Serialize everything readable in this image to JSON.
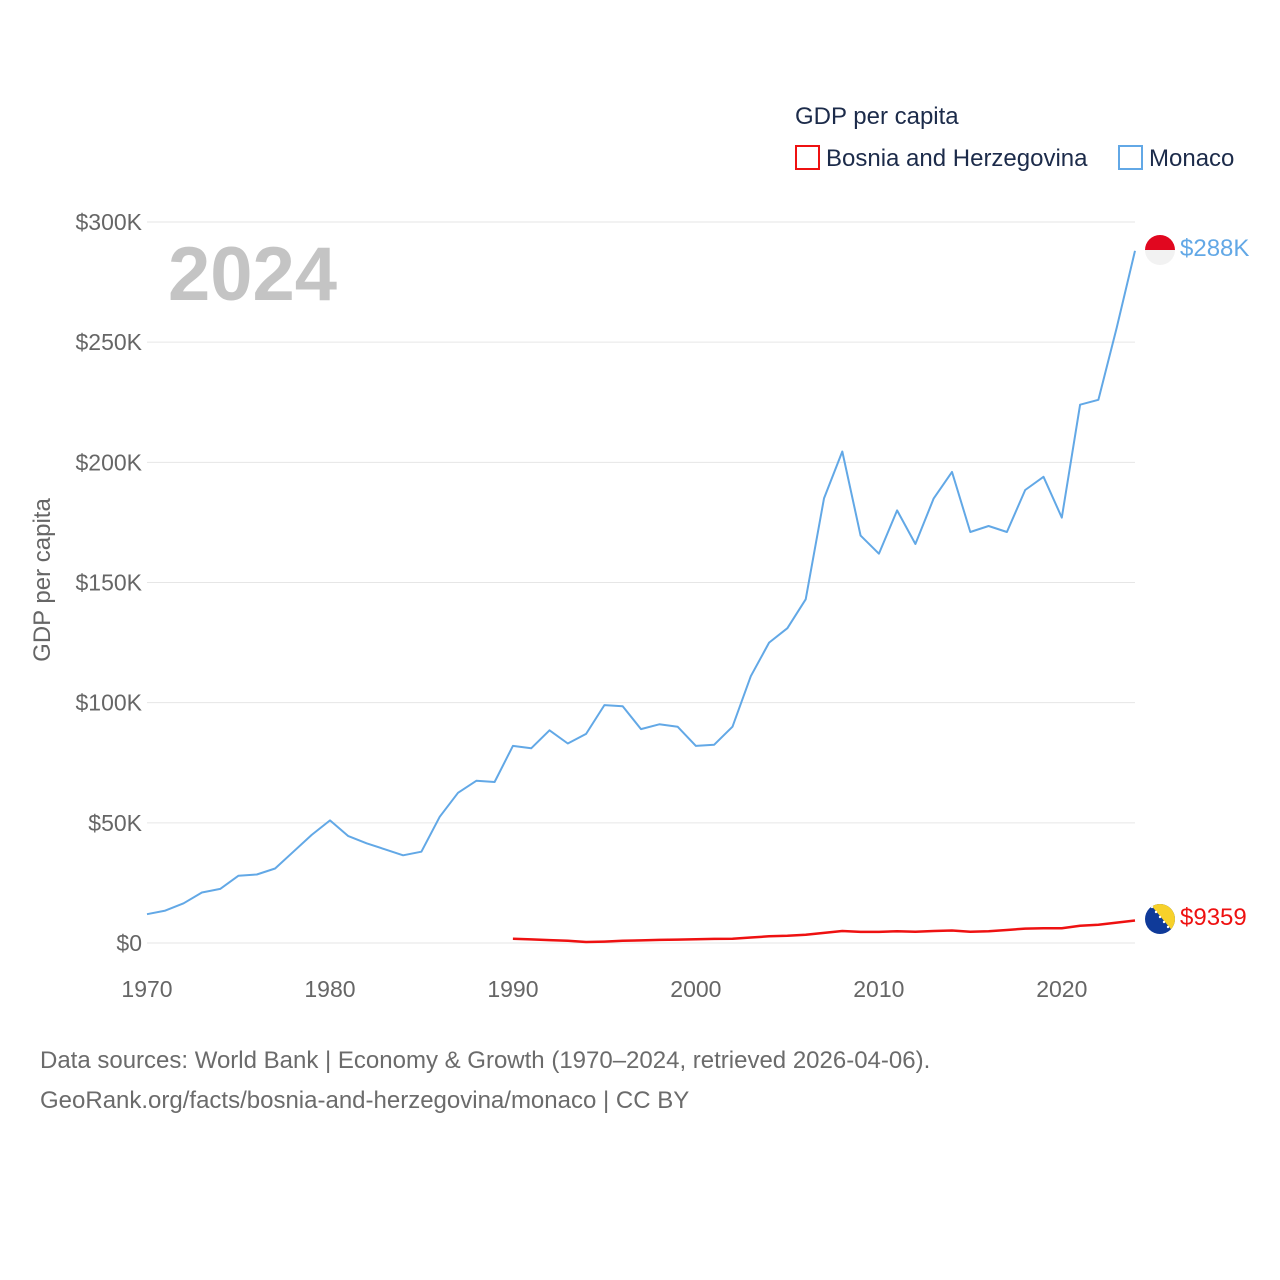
{
  "chart_data": {
    "type": "line",
    "year_label": "2024",
    "ylabel": "GDP per capita",
    "legend_title": "GDP per capita",
    "xlim": [
      1970,
      2024
    ],
    "ylim": [
      0,
      300000
    ],
    "x_ticks": [
      {
        "value": 1970,
        "label": "1970"
      },
      {
        "value": 1980,
        "label": "1980"
      },
      {
        "value": 1990,
        "label": "1990"
      },
      {
        "value": 2000,
        "label": "2000"
      },
      {
        "value": 2010,
        "label": "2010"
      },
      {
        "value": 2020,
        "label": "2020"
      }
    ],
    "y_ticks": [
      {
        "value": 0,
        "label": "$0"
      },
      {
        "value": 50000,
        "label": "$50K"
      },
      {
        "value": 100000,
        "label": "$100K"
      },
      {
        "value": 150000,
        "label": "$150K"
      },
      {
        "value": 200000,
        "label": "$200K"
      },
      {
        "value": 250000,
        "label": "$250K"
      },
      {
        "value": 300000,
        "label": "$300K"
      }
    ],
    "series": [
      {
        "name": "Bosnia and Herzegovina",
        "color": "#ee1111",
        "end_label": "$9359",
        "flag": "bosnia-flag-icon",
        "x": [
          1990,
          1991,
          1992,
          1993,
          1994,
          1995,
          1996,
          1997,
          1998,
          1999,
          2000,
          2001,
          2002,
          2003,
          2004,
          2005,
          2006,
          2007,
          2008,
          2009,
          2010,
          2011,
          2012,
          2013,
          2014,
          2015,
          2016,
          2017,
          2018,
          2019,
          2020,
          2021,
          2022,
          2023,
          2024
        ],
        "values": [
          1800,
          1500,
          1200,
          900,
          400,
          600,
          900,
          1100,
          1300,
          1400,
          1600,
          1700,
          1800,
          2300,
          2800,
          3000,
          3400,
          4200,
          5000,
          4600,
          4600,
          4900,
          4700,
          5000,
          5200,
          4700,
          4900,
          5400,
          6000,
          6100,
          6100,
          7200,
          7600,
          8500,
          9359
        ]
      },
      {
        "name": "Monaco",
        "color": "#62a8e6",
        "end_label": "$288K",
        "flag": "monaco-flag-icon",
        "x": [
          1970,
          1971,
          1972,
          1973,
          1974,
          1975,
          1976,
          1977,
          1978,
          1979,
          1980,
          1981,
          1982,
          1983,
          1984,
          1985,
          1986,
          1987,
          1988,
          1989,
          1990,
          1991,
          1992,
          1993,
          1994,
          1995,
          1996,
          1997,
          1998,
          1999,
          2000,
          2001,
          2002,
          2003,
          2004,
          2005,
          2006,
          2007,
          2008,
          2009,
          2010,
          2011,
          2012,
          2013,
          2014,
          2015,
          2016,
          2017,
          2018,
          2019,
          2020,
          2021,
          2022,
          2023,
          2024
        ],
        "values": [
          12000,
          13500,
          16500,
          21000,
          22500,
          28000,
          28500,
          31000,
          38000,
          45000,
          51000,
          44500,
          41500,
          39000,
          36500,
          38000,
          52500,
          62500,
          67500,
          67000,
          82000,
          81000,
          88500,
          83000,
          87000,
          99000,
          98500,
          89000,
          91000,
          90000,
          82000,
          82500,
          90000,
          111000,
          125000,
          131000,
          143000,
          185000,
          204500,
          169500,
          162000,
          180000,
          166000,
          185000,
          196000,
          171000,
          173500,
          171000,
          188500,
          194000,
          177000,
          224000,
          226000,
          256000,
          288000
        ]
      }
    ]
  },
  "footer": {
    "line1": "Data sources: World Bank | Economy & Growth (1970–2024, retrieved 2026-04-06).",
    "line2": "GeoRank.org/facts/bosnia-and-herzegovina/monaco | CC BY"
  }
}
